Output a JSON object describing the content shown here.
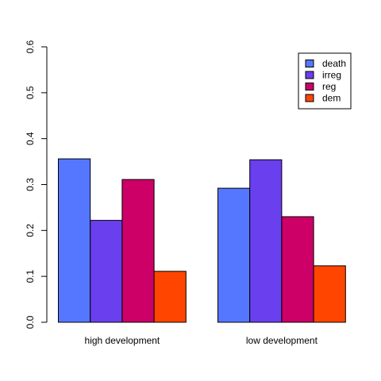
{
  "chart_data": {
    "type": "bar",
    "grouped": true,
    "title": "",
    "xlabel": "",
    "ylabel": "",
    "ylim": [
      0,
      0.6
    ],
    "yticks": [
      "0.0",
      "0.1",
      "0.2",
      "0.3",
      "0.4",
      "0.5",
      "0.6"
    ],
    "grid": false,
    "legend_position": "top-right",
    "categories": [
      "high development",
      "low development"
    ],
    "series": [
      {
        "name": "death",
        "color": "#5577FF",
        "values": [
          0.356,
          0.292
        ]
      },
      {
        "name": "irreg",
        "color": "#6A3FEE",
        "values": [
          0.222,
          0.354
        ]
      },
      {
        "name": "reg",
        "color": "#CC0066",
        "values": [
          0.311,
          0.23
        ]
      },
      {
        "name": "dem",
        "color": "#FF4500",
        "values": [
          0.111,
          0.123
        ]
      }
    ]
  }
}
